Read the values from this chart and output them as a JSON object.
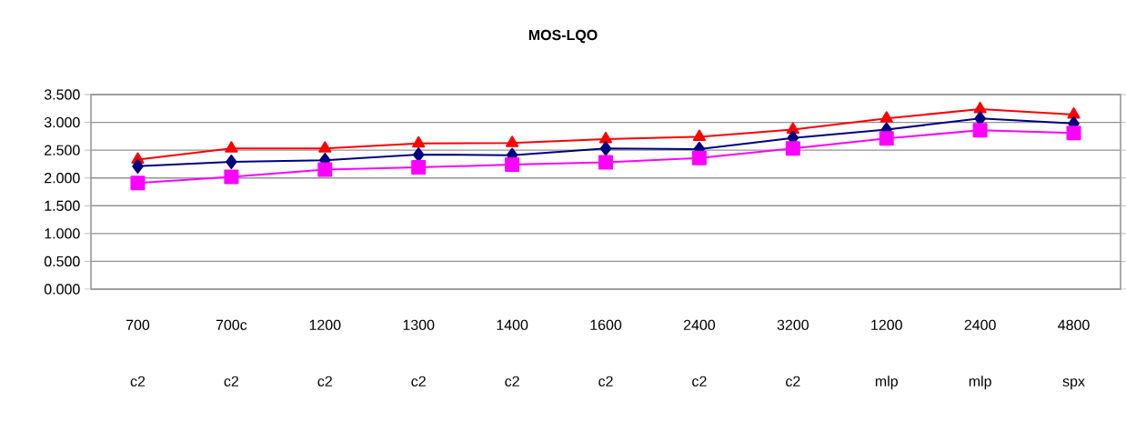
{
  "chart_data": {
    "type": "line",
    "title": "MOS-LQO",
    "categories": [
      "700 c2",
      "700c c2",
      "1200 c2",
      "1300 c2",
      "1400 c2",
      "1600 c2",
      "2400 c2",
      "3200 c2",
      "1200 mlp",
      "2400 mlp",
      "4800 spx"
    ],
    "series": [
      {
        "color": "#ff0000",
        "marker": "triangle",
        "values": [
          2.33,
          2.53,
          2.53,
          2.62,
          2.63,
          2.7,
          2.74,
          2.87,
          3.07,
          3.24,
          3.14
        ]
      },
      {
        "color": "#000080",
        "marker": "diamond",
        "values": [
          2.21,
          2.29,
          2.32,
          2.42,
          2.41,
          2.53,
          2.52,
          2.72,
          2.87,
          3.07,
          2.98
        ]
      },
      {
        "color": "#ff00ff",
        "marker": "square",
        "values": [
          1.91,
          2.02,
          2.15,
          2.19,
          2.24,
          2.28,
          2.36,
          2.53,
          2.71,
          2.86,
          2.81
        ]
      }
    ],
    "ylim": [
      0,
      3.5
    ],
    "yticks": [
      {
        "value": 0,
        "label": "0.000"
      },
      {
        "value": 0.5,
        "label": "0.500"
      },
      {
        "value": 1,
        "label": "1.000"
      },
      {
        "value": 1.5,
        "label": "1.500"
      },
      {
        "value": 2,
        "label": "2.000"
      },
      {
        "value": 2.5,
        "label": "2.500"
      },
      {
        "value": 3,
        "label": "3.000"
      },
      {
        "value": 3.5,
        "label": "3.500"
      }
    ],
    "grid": "y"
  }
}
